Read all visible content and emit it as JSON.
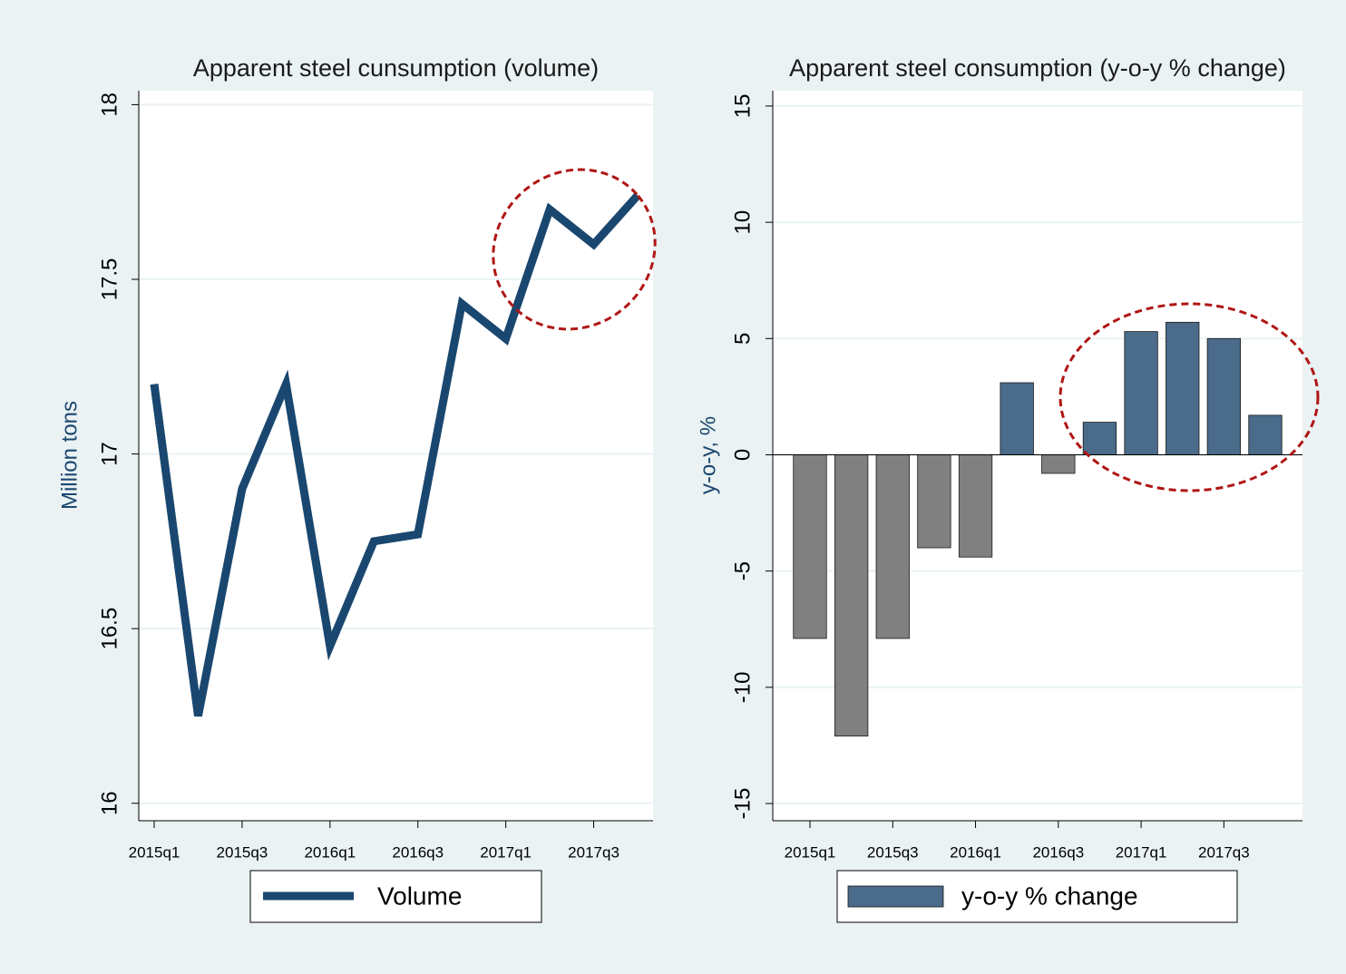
{
  "chart_data": [
    {
      "type": "line",
      "title": "Apparent steel cunsumption (volume)",
      "ylabel": "Million tons",
      "categories": [
        "2015q1",
        null,
        "2015q3",
        null,
        "2016q1",
        null,
        "2016q3",
        null,
        "2017q1",
        null,
        "2017q3",
        null
      ],
      "series": [
        {
          "name": "Volume",
          "color": "#1a476f",
          "values": [
            17.2,
            16.25,
            16.9,
            17.2,
            16.45,
            16.75,
            16.77,
            17.43,
            17.33,
            17.7,
            17.6,
            17.74
          ]
        }
      ],
      "ylim": [
        15.95,
        18.04
      ],
      "yticks": [
        16,
        16.5,
        17,
        17.5,
        18
      ],
      "grid": true
    },
    {
      "type": "bar",
      "title": "Apparent steel consumption (y-o-y % change)",
      "ylabel": "y-o-y, %",
      "categories": [
        "2015q1",
        null,
        "2015q3",
        null,
        "2016q1",
        null,
        "2016q3",
        null,
        "2017q1",
        null,
        "2017q3",
        null
      ],
      "series": [
        {
          "name": "y-o-y % change",
          "color": "#4a6b8a",
          "negative_color": "#808080",
          "values": [
            -7.9,
            -12.1,
            -7.9,
            -4.0,
            -4.4,
            3.1,
            -0.8,
            1.4,
            5.3,
            5.7,
            5.0,
            1.7
          ]
        }
      ],
      "ylim": [
        -15.74,
        15.66
      ],
      "yticks": [
        -15,
        -10,
        -5,
        0,
        5,
        10,
        15
      ],
      "grid": true
    }
  ]
}
